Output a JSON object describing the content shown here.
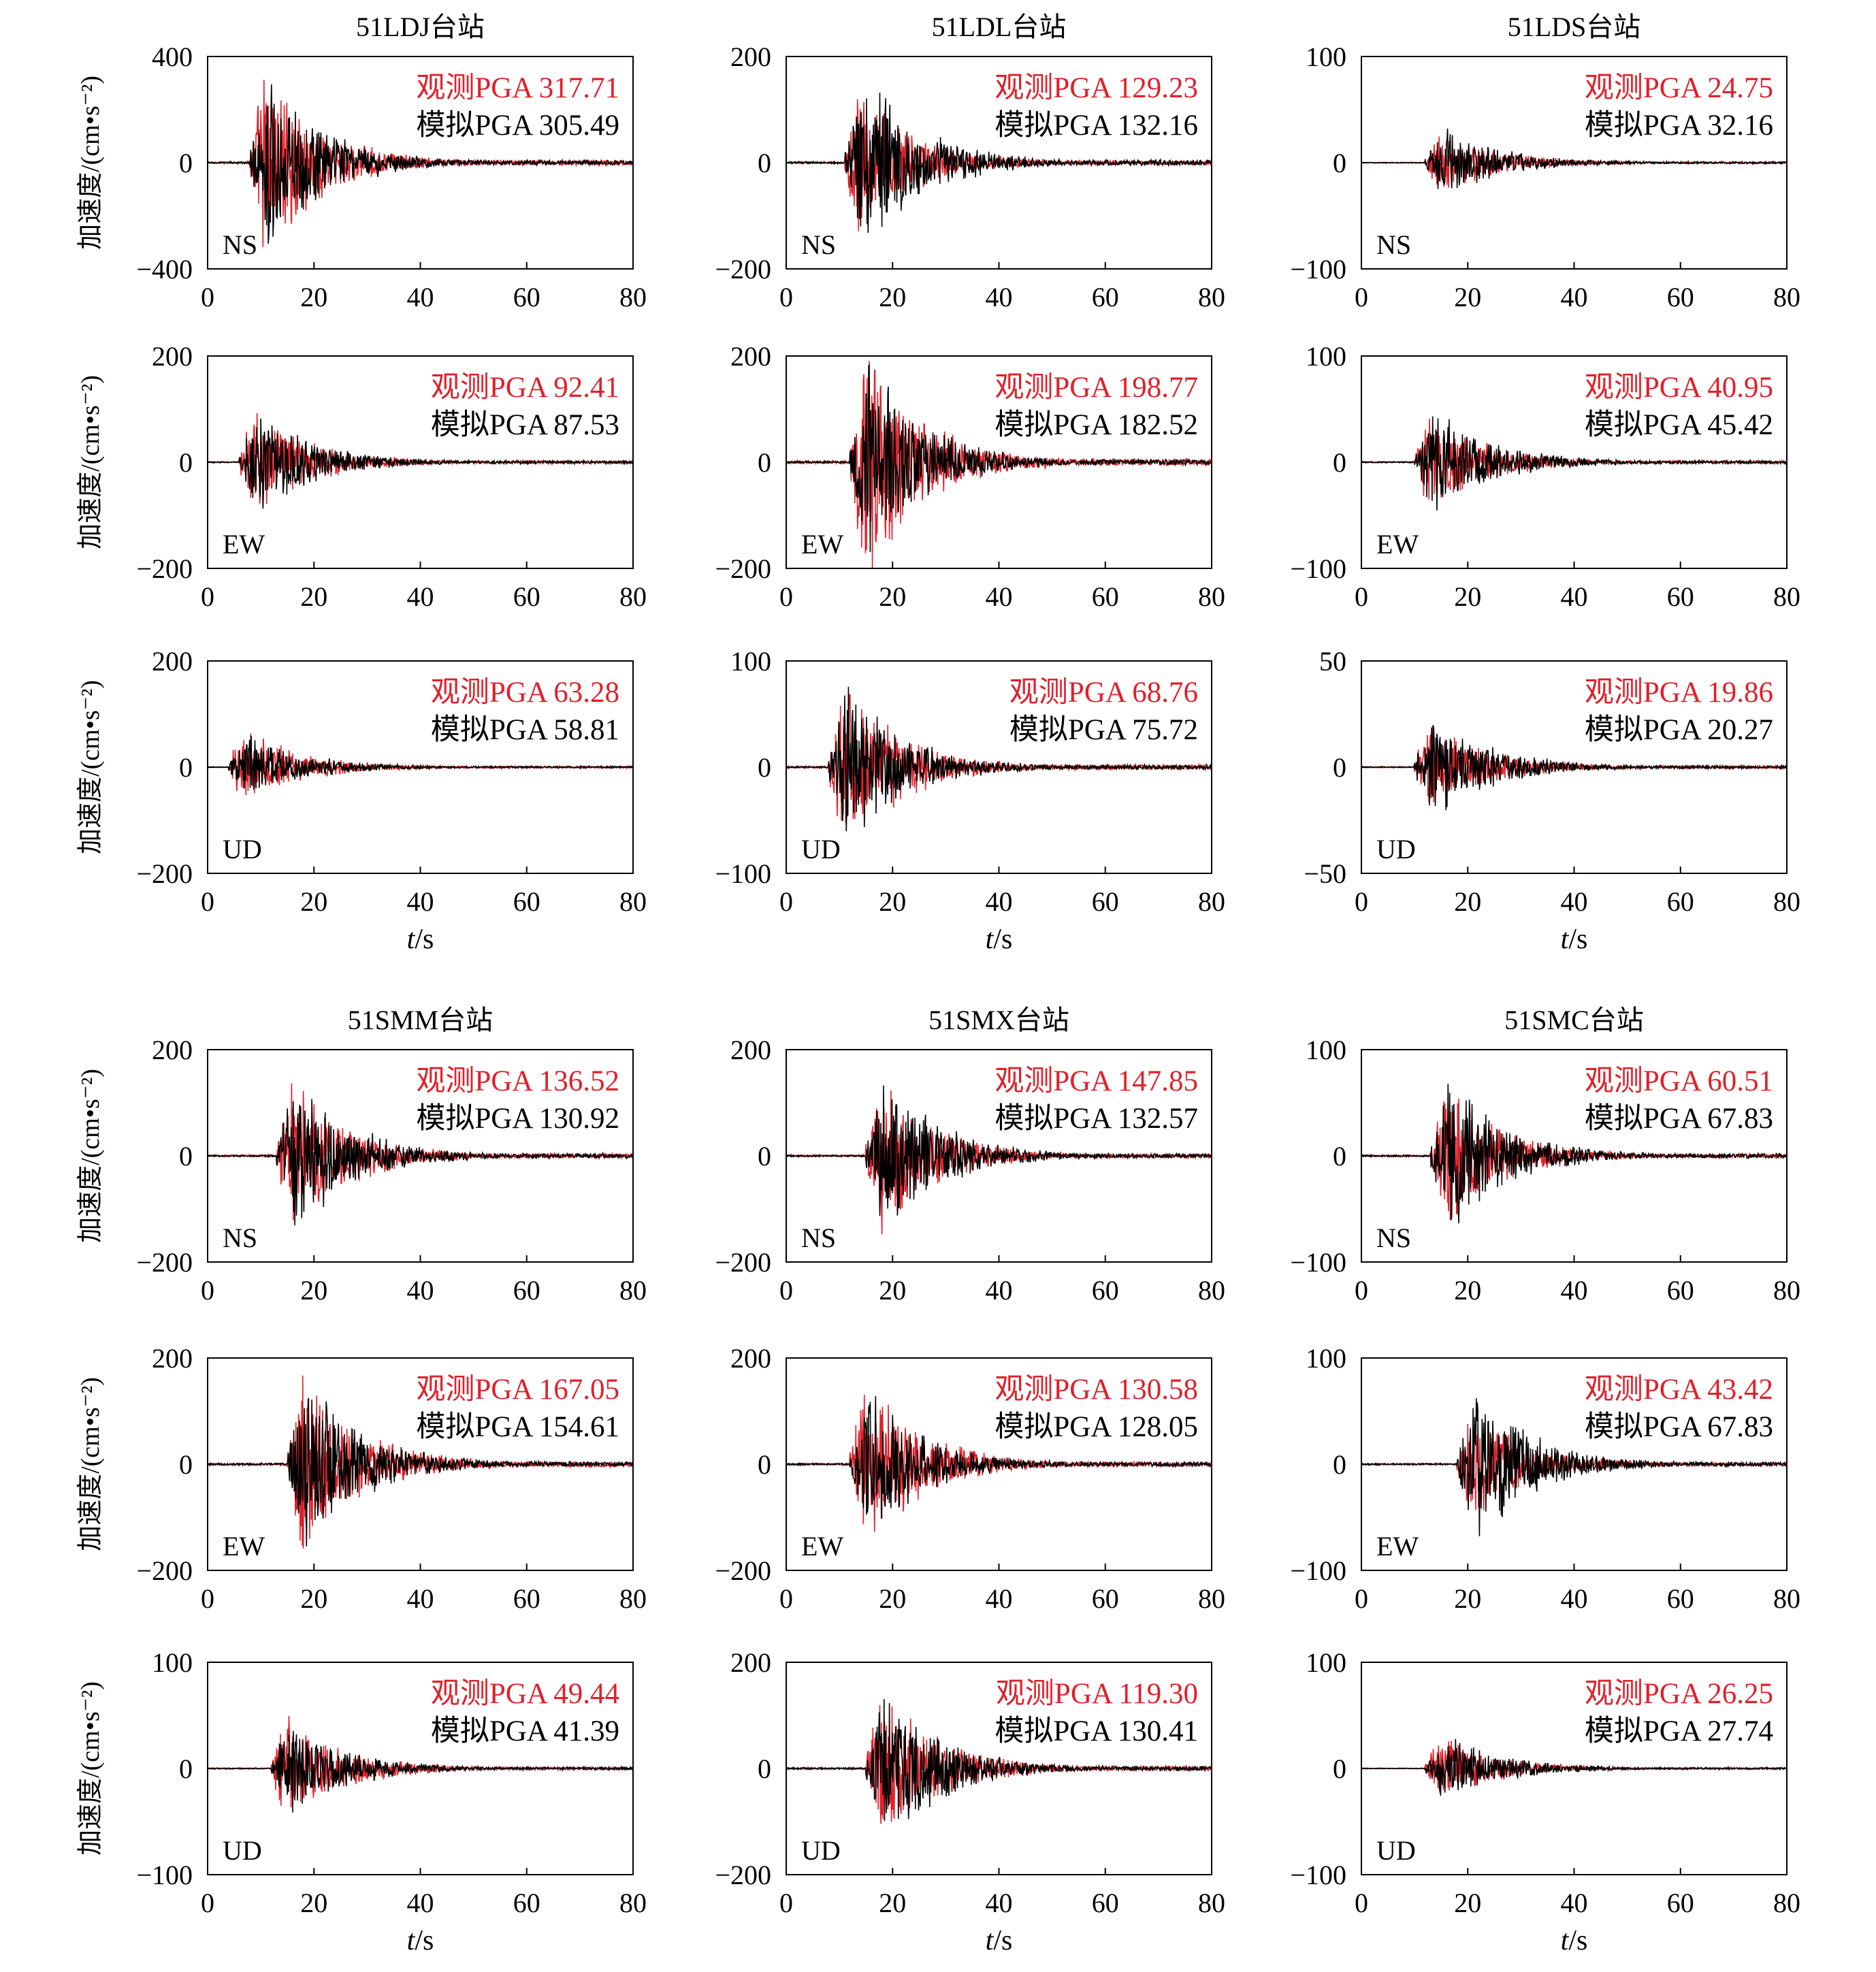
{
  "figure": {
    "ylabel": "加速度/(cm•s⁻²)",
    "xlabel_var": "t",
    "xlabel_unit": "/s",
    "observed_color": "#e0202a",
    "simulated_color": "#000000"
  },
  "chart_data": [
    {
      "type": "line",
      "station": "51LDJ台站",
      "component": "NS",
      "ylim": [
        -400,
        400
      ],
      "yticks": [
        -400,
        0,
        400
      ],
      "xlim": [
        0,
        80
      ],
      "xticks": [
        0,
        20,
        40,
        60,
        80
      ],
      "observed_label": "观测PGA 317.71",
      "simulated_label": "模拟PGA 305.49",
      "observed_pga": 317.71,
      "simulated_pga": 305.49,
      "series": [
        {
          "name": "观测",
          "color": "#e0202a",
          "onset_s": 8
        },
        {
          "name": "模拟",
          "color": "#000000",
          "onset_s": 8
        }
      ]
    },
    {
      "type": "line",
      "station": "51LDL台站",
      "component": "NS",
      "ylim": [
        -200,
        200
      ],
      "yticks": [
        -200,
        0,
        200
      ],
      "xlim": [
        0,
        80
      ],
      "xticks": [
        0,
        20,
        40,
        60,
        80
      ],
      "observed_label": "观测PGA 129.23",
      "simulated_label": "模拟PGA 132.16",
      "observed_pga": 129.23,
      "simulated_pga": 132.16,
      "series": [
        {
          "name": "观测",
          "color": "#e0202a",
          "onset_s": 11
        },
        {
          "name": "模拟",
          "color": "#000000",
          "onset_s": 11
        }
      ]
    },
    {
      "type": "line",
      "station": "51LDS台站",
      "component": "NS",
      "ylim": [
        -100,
        100
      ],
      "yticks": [
        -100,
        0,
        100
      ],
      "xlim": [
        0,
        80
      ],
      "xticks": [
        0,
        20,
        40,
        60,
        80
      ],
      "observed_label": "观测PGA 24.75",
      "simulated_label": "模拟PGA 32.16",
      "observed_pga": 24.75,
      "simulated_pga": 32.16,
      "series": [
        {
          "name": "观测",
          "color": "#e0202a",
          "onset_s": 12
        },
        {
          "name": "模拟",
          "color": "#000000",
          "onset_s": 12
        }
      ]
    },
    {
      "type": "line",
      "station": "51LDJ台站",
      "component": "EW",
      "ylim": [
        -200,
        200
      ],
      "yticks": [
        -200,
        0,
        200
      ],
      "xlim": [
        0,
        80
      ],
      "xticks": [
        0,
        20,
        40,
        60,
        80
      ],
      "observed_label": "观测PGA 92.41",
      "simulated_label": "模拟PGA 87.53",
      "observed_pga": 92.41,
      "simulated_pga": 87.53,
      "series": [
        {
          "name": "观测",
          "color": "#e0202a",
          "onset_s": 6
        },
        {
          "name": "模拟",
          "color": "#000000",
          "onset_s": 6
        }
      ]
    },
    {
      "type": "line",
      "station": "51LDL台站",
      "component": "EW",
      "ylim": [
        -200,
        200
      ],
      "yticks": [
        -200,
        0,
        200
      ],
      "xlim": [
        0,
        80
      ],
      "xticks": [
        0,
        20,
        40,
        60,
        80
      ],
      "observed_label": "观测PGA 198.77",
      "simulated_label": "模拟PGA 182.52",
      "observed_pga": 198.77,
      "simulated_pga": 182.52,
      "series": [
        {
          "name": "观测",
          "color": "#e0202a",
          "onset_s": 12
        },
        {
          "name": "模拟",
          "color": "#000000",
          "onset_s": 12
        }
      ]
    },
    {
      "type": "line",
      "station": "51LDS台站",
      "component": "EW",
      "ylim": [
        -100,
        100
      ],
      "yticks": [
        -100,
        0,
        100
      ],
      "xlim": [
        0,
        80
      ],
      "xticks": [
        0,
        20,
        40,
        60,
        80
      ],
      "observed_label": "观测PGA 40.95",
      "simulated_label": "模拟PGA 45.42",
      "observed_pga": 40.95,
      "simulated_pga": 45.42,
      "series": [
        {
          "name": "观测",
          "color": "#e0202a",
          "onset_s": 10
        },
        {
          "name": "模拟",
          "color": "#000000",
          "onset_s": 10
        }
      ]
    },
    {
      "type": "line",
      "station": "51LDJ台站",
      "component": "UD",
      "ylim": [
        -200,
        200
      ],
      "yticks": [
        -200,
        0,
        200
      ],
      "xlim": [
        0,
        80
      ],
      "xticks": [
        0,
        20,
        40,
        60,
        80
      ],
      "observed_label": "观测PGA 63.28",
      "simulated_label": "模拟PGA 58.81",
      "observed_pga": 63.28,
      "simulated_pga": 58.81,
      "series": [
        {
          "name": "观测",
          "color": "#e0202a",
          "onset_s": 4
        },
        {
          "name": "模拟",
          "color": "#000000",
          "onset_s": 4
        }
      ]
    },
    {
      "type": "line",
      "station": "51LDL台站",
      "component": "UD",
      "ylim": [
        -100,
        100
      ],
      "yticks": [
        -100,
        0,
        100
      ],
      "xlim": [
        0,
        80
      ],
      "xticks": [
        0,
        20,
        40,
        60,
        80
      ],
      "observed_label": "观测PGA 68.76",
      "simulated_label": "模拟PGA 75.72",
      "observed_pga": 68.76,
      "simulated_pga": 75.72,
      "series": [
        {
          "name": "观测",
          "color": "#e0202a",
          "onset_s": 8
        },
        {
          "name": "模拟",
          "color": "#000000",
          "onset_s": 8
        }
      ]
    },
    {
      "type": "line",
      "station": "51LDS台站",
      "component": "UD",
      "ylim": [
        -50,
        50
      ],
      "yticks": [
        -50,
        0,
        50
      ],
      "xlim": [
        0,
        80
      ],
      "xticks": [
        0,
        20,
        40,
        60,
        80
      ],
      "observed_label": "观测PGA 19.86",
      "simulated_label": "模拟PGA 20.27",
      "observed_pga": 19.86,
      "simulated_pga": 20.27,
      "series": [
        {
          "name": "观测",
          "color": "#e0202a",
          "onset_s": 10
        },
        {
          "name": "模拟",
          "color": "#000000",
          "onset_s": 10
        }
      ]
    },
    {
      "type": "line",
      "station": "51SMM台站",
      "component": "NS",
      "ylim": [
        -200,
        200
      ],
      "yticks": [
        -200,
        0,
        200
      ],
      "xlim": [
        0,
        80
      ],
      "xticks": [
        0,
        20,
        40,
        60,
        80
      ],
      "observed_label": "观测PGA 136.52",
      "simulated_label": "模拟PGA 130.92",
      "observed_pga": 136.52,
      "simulated_pga": 130.92,
      "series": [
        {
          "name": "观测",
          "color": "#e0202a",
          "onset_s": 13
        },
        {
          "name": "模拟",
          "color": "#000000",
          "onset_s": 13
        }
      ]
    },
    {
      "type": "line",
      "station": "51SMX台站",
      "component": "NS",
      "ylim": [
        -200,
        200
      ],
      "yticks": [
        -200,
        0,
        200
      ],
      "xlim": [
        0,
        80
      ],
      "xticks": [
        0,
        20,
        40,
        60,
        80
      ],
      "observed_label": "观测PGA 147.85",
      "simulated_label": "模拟PGA 132.57",
      "observed_pga": 147.85,
      "simulated_pga": 132.57,
      "series": [
        {
          "name": "观测",
          "color": "#e0202a",
          "onset_s": 15
        },
        {
          "name": "模拟",
          "color": "#000000",
          "onset_s": 15
        }
      ]
    },
    {
      "type": "line",
      "station": "51SMC台站",
      "component": "NS",
      "ylim": [
        -100,
        100
      ],
      "yticks": [
        -100,
        0,
        100
      ],
      "xlim": [
        0,
        80
      ],
      "xticks": [
        0,
        20,
        40,
        60,
        80
      ],
      "observed_label": "观测PGA 60.51",
      "simulated_label": "模拟PGA 67.83",
      "observed_pga": 60.51,
      "simulated_pga": 67.83,
      "series": [
        {
          "name": "观测",
          "color": "#e0202a",
          "onset_s": 13
        },
        {
          "name": "模拟",
          "color": "#000000",
          "onset_s": 13
        }
      ]
    },
    {
      "type": "line",
      "station": "51SMM台站",
      "component": "EW",
      "ylim": [
        -200,
        200
      ],
      "yticks": [
        -200,
        0,
        200
      ],
      "xlim": [
        0,
        80
      ],
      "xticks": [
        0,
        20,
        40,
        60,
        80
      ],
      "observed_label": "观测PGA 167.05",
      "simulated_label": "模拟PGA 154.61",
      "observed_pga": 167.05,
      "simulated_pga": 154.61,
      "series": [
        {
          "name": "观测",
          "color": "#e0202a",
          "onset_s": 15
        },
        {
          "name": "模拟",
          "color": "#000000",
          "onset_s": 15
        }
      ]
    },
    {
      "type": "line",
      "station": "51SMX台站",
      "component": "EW",
      "ylim": [
        -200,
        200
      ],
      "yticks": [
        -200,
        0,
        200
      ],
      "xlim": [
        0,
        80
      ],
      "xticks": [
        0,
        20,
        40,
        60,
        80
      ],
      "observed_label": "观测PGA 130.58",
      "simulated_label": "模拟PGA 128.05",
      "observed_pga": 130.58,
      "simulated_pga": 128.05,
      "series": [
        {
          "name": "观测",
          "color": "#e0202a",
          "onset_s": 12
        },
        {
          "name": "模拟",
          "color": "#000000",
          "onset_s": 12
        }
      ]
    },
    {
      "type": "line",
      "station": "51SMC台站",
      "component": "EW",
      "ylim": [
        -100,
        100
      ],
      "yticks": [
        -100,
        0,
        100
      ],
      "xlim": [
        0,
        80
      ],
      "xticks": [
        0,
        20,
        40,
        60,
        80
      ],
      "observed_label": "观测PGA 43.42",
      "simulated_label": "模拟PGA 67.83",
      "observed_pga": 43.42,
      "simulated_pga": 67.83,
      "series": [
        {
          "name": "观测",
          "color": "#e0202a",
          "onset_s": 18
        },
        {
          "name": "模拟",
          "color": "#000000",
          "onset_s": 18
        }
      ]
    },
    {
      "type": "line",
      "station": "51SMM台站",
      "component": "UD",
      "ylim": [
        -100,
        100
      ],
      "yticks": [
        -100,
        0,
        100
      ],
      "xlim": [
        0,
        80
      ],
      "xticks": [
        0,
        20,
        40,
        60,
        80
      ],
      "observed_label": "观测PGA 49.44",
      "simulated_label": "模拟PGA 41.39",
      "observed_pga": 49.44,
      "simulated_pga": 41.39,
      "series": [
        {
          "name": "观测",
          "color": "#e0202a",
          "onset_s": 12
        },
        {
          "name": "模拟",
          "color": "#000000",
          "onset_s": 12
        }
      ]
    },
    {
      "type": "line",
      "station": "51SMX台站",
      "component": "UD",
      "ylim": [
        -200,
        200
      ],
      "yticks": [
        -200,
        0,
        200
      ],
      "xlim": [
        0,
        80
      ],
      "xticks": [
        0,
        20,
        40,
        60,
        80
      ],
      "observed_label": "观测PGA 119.30",
      "simulated_label": "模拟PGA 130.41",
      "observed_pga": 119.3,
      "simulated_pga": 130.41,
      "series": [
        {
          "name": "观测",
          "color": "#e0202a",
          "onset_s": 15
        },
        {
          "name": "模拟",
          "color": "#000000",
          "onset_s": 15
        }
      ]
    },
    {
      "type": "line",
      "station": "51SMC台站",
      "component": "UD",
      "ylim": [
        -100,
        100
      ],
      "yticks": [
        -100,
        0,
        100
      ],
      "xlim": [
        0,
        80
      ],
      "xticks": [
        0,
        20,
        40,
        60,
        80
      ],
      "observed_label": "观测PGA 26.25",
      "simulated_label": "模拟PGA 27.74",
      "observed_pga": 26.25,
      "simulated_pga": 27.74,
      "series": [
        {
          "name": "观测",
          "color": "#e0202a",
          "onset_s": 12
        },
        {
          "name": "模拟",
          "color": "#000000",
          "onset_s": 12
        }
      ]
    }
  ]
}
